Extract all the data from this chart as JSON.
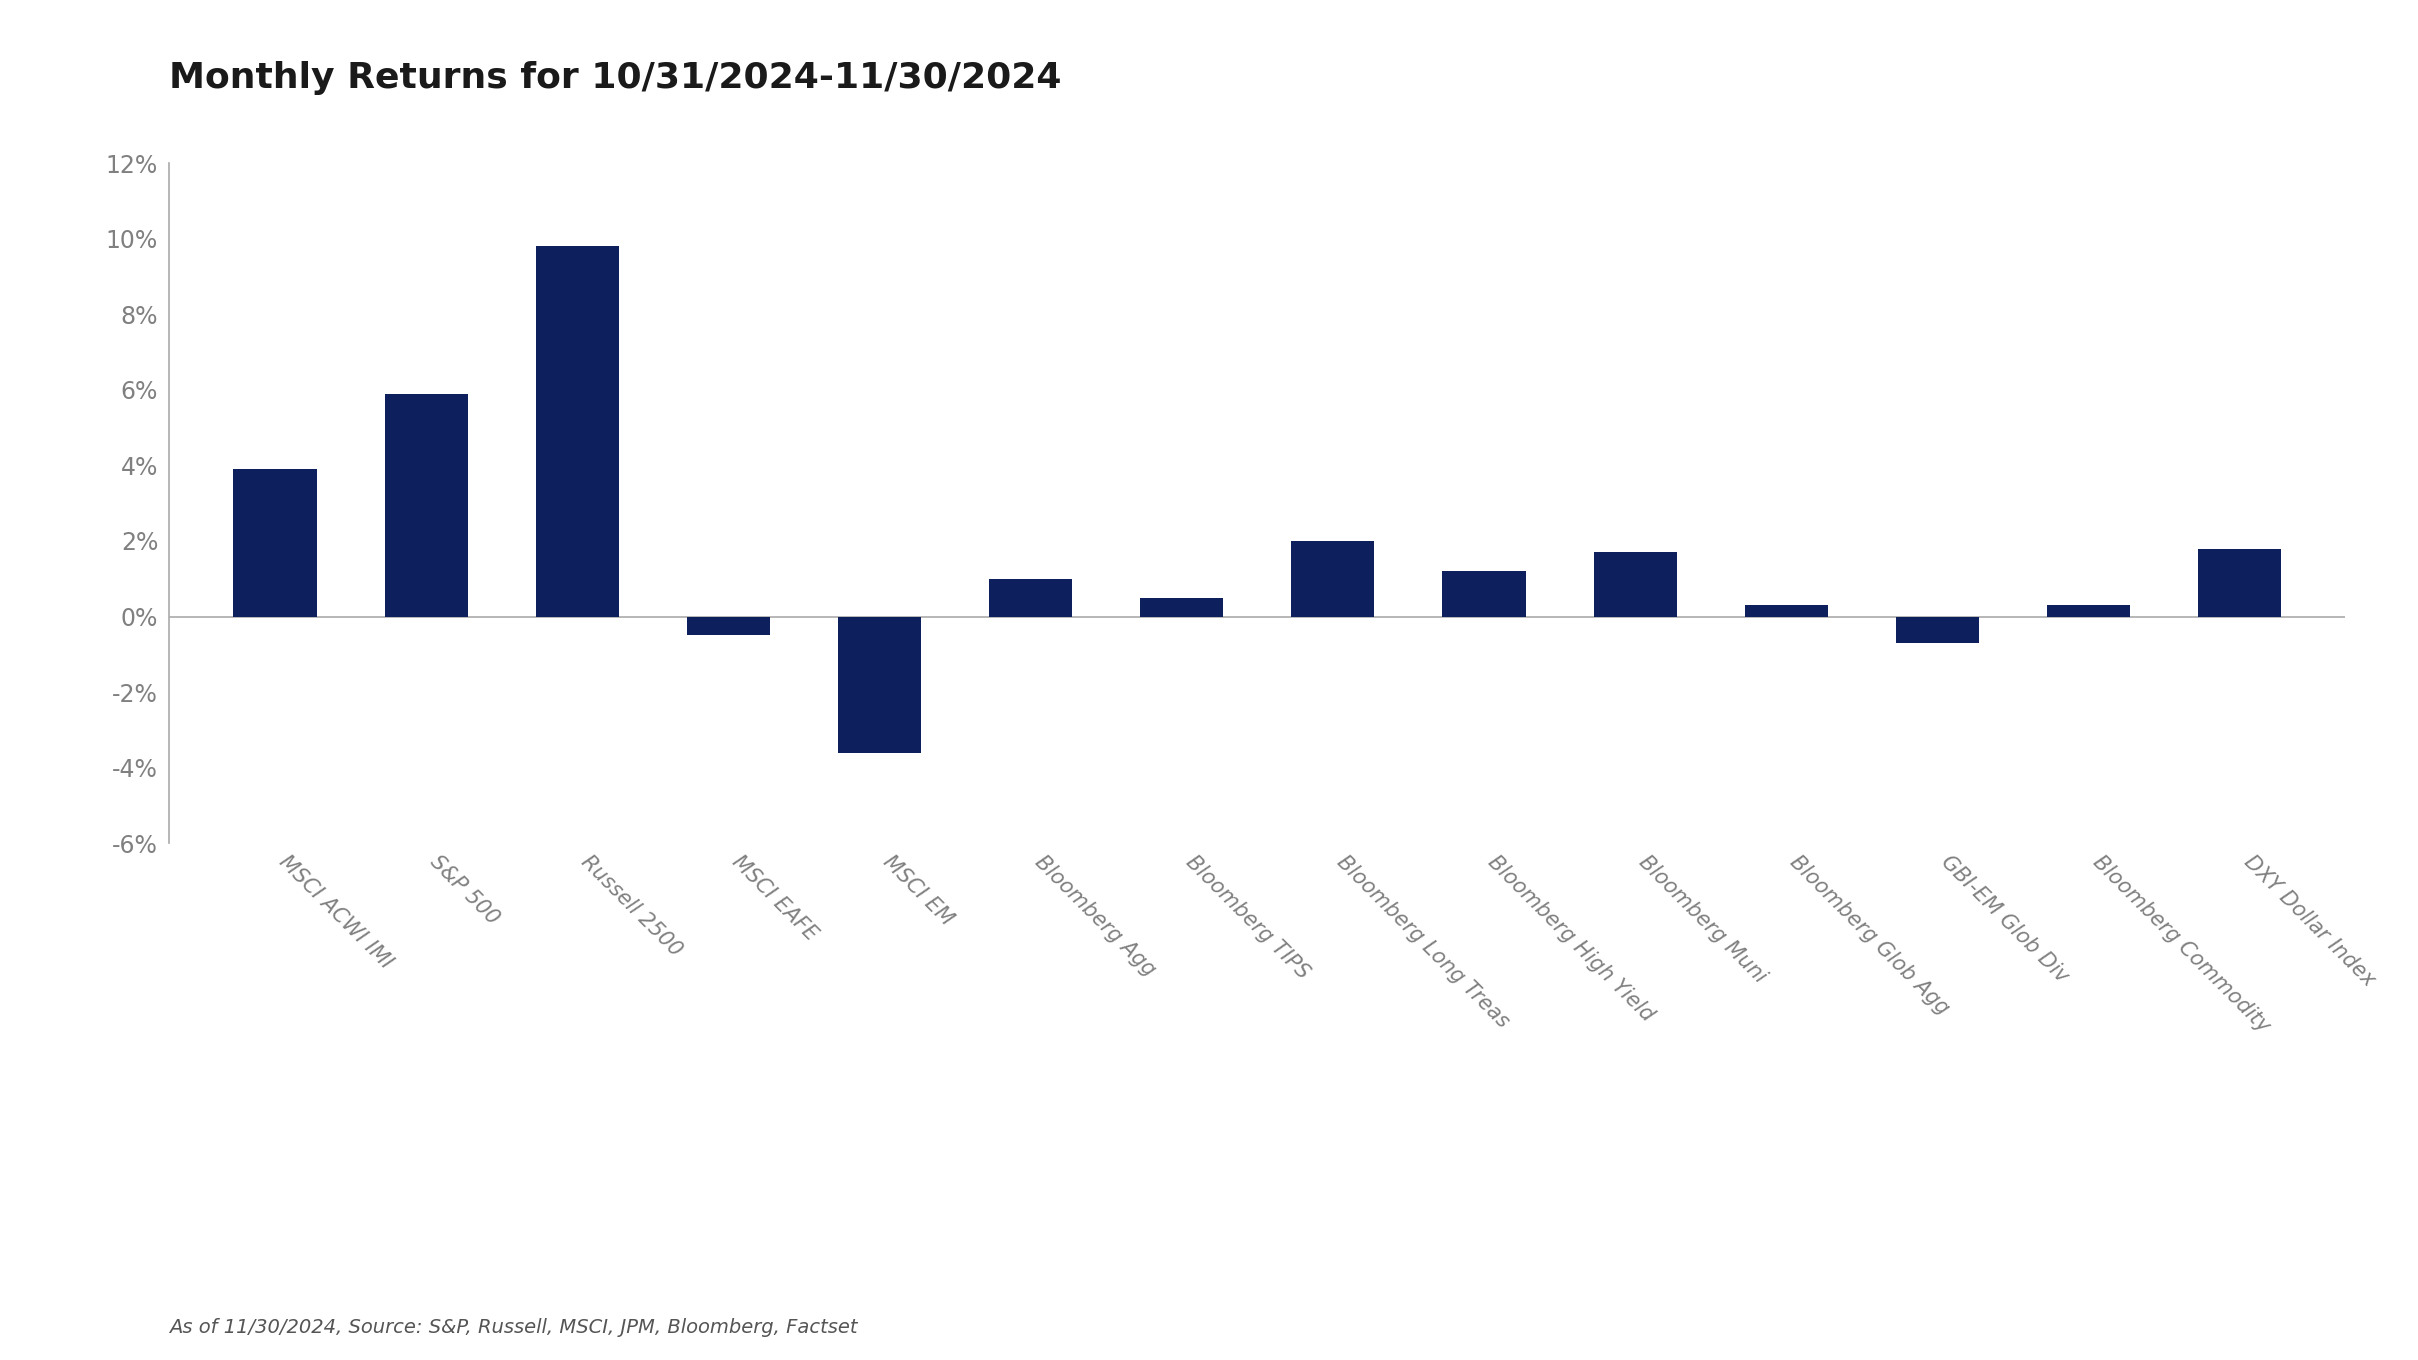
{
  "title": "Monthly Returns for 10/31/2024-11/30/2024",
  "categories": [
    "MSCI ACWI IMI",
    "S&P 500",
    "Russell 2500",
    "MSCI EAFE",
    "MSCI EM",
    "Bloomberg Agg",
    "Bloomberg TIPS",
    "Bloomberg Long Treas",
    "Bloomberg High Yield",
    "Bloomberg Muni",
    "Bloomberg Glob Agg",
    "GBI-EM Glob Div",
    "Bloomberg Commodity",
    "DXY Dollar Index"
  ],
  "values": [
    3.9,
    5.9,
    9.8,
    -0.5,
    -3.6,
    1.0,
    0.5,
    2.0,
    1.2,
    1.7,
    0.3,
    -0.7,
    0.3,
    1.8
  ],
  "bar_color": "#0d1f5c",
  "background_color": "#ffffff",
  "title_color": "#1a1a1a",
  "title_fontsize": 26,
  "tick_label_color": "#808080",
  "ylim": [
    -6,
    12
  ],
  "yticks": [
    -6,
    -4,
    -2,
    0,
    2,
    4,
    6,
    8,
    10,
    12
  ],
  "footnote": "As of 11/30/2024, Source: S&P, Russell, MSCI, JPM, Bloomberg, Factset",
  "footnote_color": "#555555",
  "footnote_fontsize": 14,
  "bar_width": 0.55
}
